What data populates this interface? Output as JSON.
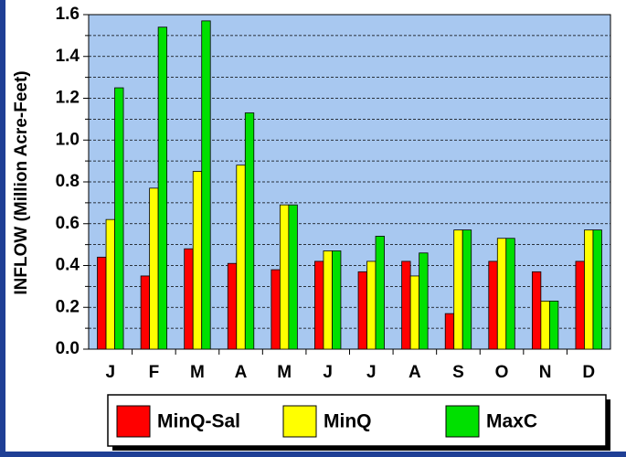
{
  "chart_data": {
    "type": "bar",
    "y_label": "INFLOW (Million Acre-Feet)",
    "categories": [
      "J",
      "F",
      "M",
      "A",
      "M",
      "J",
      "J",
      "A",
      "S",
      "O",
      "N",
      "D"
    ],
    "series": [
      {
        "name": "MinQ-Sal",
        "color": "#ff0000",
        "values": [
          0.44,
          0.35,
          0.48,
          0.41,
          0.38,
          0.42,
          0.37,
          0.42,
          0.17,
          0.42,
          0.37,
          0.42
        ]
      },
      {
        "name": "MinQ",
        "color": "#ffff00",
        "values": [
          0.62,
          0.77,
          0.85,
          0.88,
          0.69,
          0.47,
          0.42,
          0.35,
          0.57,
          0.53,
          0.23,
          0.57
        ]
      },
      {
        "name": "MaxC",
        "color": "#00e000",
        "values": [
          1.25,
          1.54,
          1.57,
          1.13,
          0.69,
          0.47,
          0.54,
          0.46,
          0.57,
          0.53,
          0.23,
          0.57
        ]
      }
    ],
    "ylim": [
      0,
      1.6
    ],
    "yticks": [
      {
        "value": 0,
        "label": "0.0"
      },
      0.2,
      0.4,
      0.6,
      0.8,
      {
        "value": 1,
        "label": "1.0"
      },
      1.2,
      1.4,
      1.6
    ],
    "minor_yticks": [
      0.1,
      0.3,
      0.5,
      0.7,
      0.9,
      1.1,
      1.3,
      1.5
    ],
    "grid": true
  }
}
